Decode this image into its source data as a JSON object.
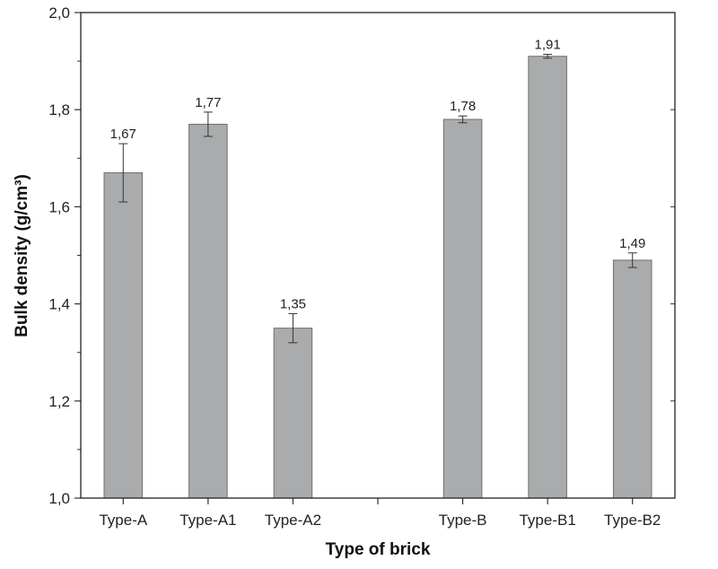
{
  "chart_data": {
    "type": "bar",
    "title": "",
    "xlabel": "Type of brick",
    "ylabel": "Bulk density (g/cm³)",
    "ylim": [
      1.0,
      2.0
    ],
    "yticks": [
      "1,0",
      "1,2",
      "1,4",
      "1,6",
      "1,8",
      "2,0"
    ],
    "grid": false,
    "legend": "none",
    "categories": [
      "Type-A",
      "Type-A1",
      "Type-A2",
      "",
      "Type-B",
      "Type-B1",
      "Type-B2"
    ],
    "values": [
      1.67,
      1.77,
      1.35,
      null,
      1.78,
      1.91,
      1.49
    ],
    "value_labels": [
      "1,67",
      "1,77",
      "1,35",
      "",
      "1,78",
      "1,91",
      "1,49"
    ],
    "error": [
      0.06,
      0.025,
      0.03,
      null,
      0.007,
      0.004,
      0.015
    ],
    "bar_color": "#aaabad",
    "bar_edge_color": "#6f6f6f"
  }
}
